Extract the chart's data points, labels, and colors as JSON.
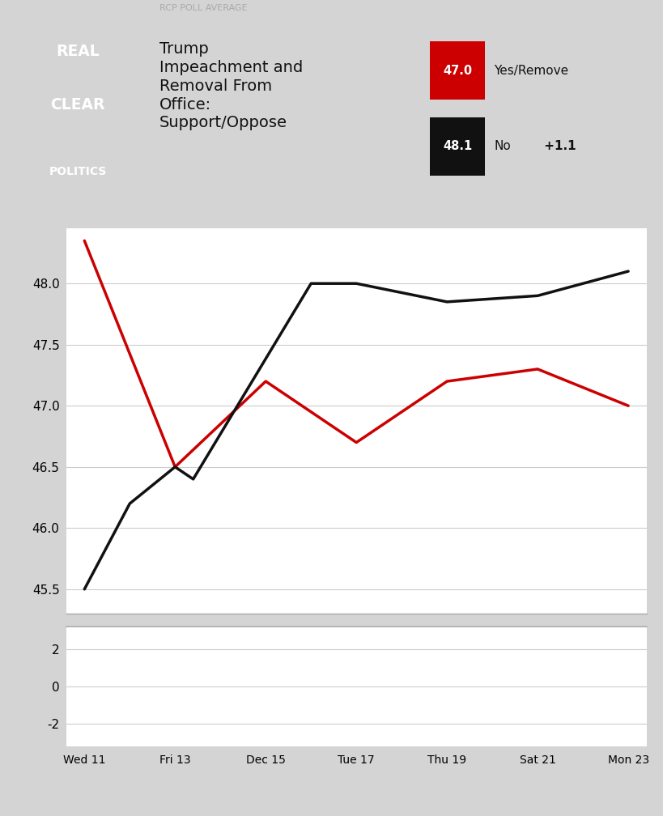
{
  "x_labels": [
    "Wed 11",
    "Fri 13",
    "Dec 15",
    "Tue 17",
    "Thu 19",
    "Sat 21",
    "Mon 23"
  ],
  "x_values": [
    0,
    1,
    2,
    3,
    4,
    5,
    6
  ],
  "red_values": [
    48.35,
    46.5,
    47.2,
    46.7,
    47.2,
    47.3,
    47.0
  ],
  "black_values": [
    45.5,
    46.2,
    46.5,
    46.4,
    48.0,
    48.0,
    47.85,
    47.9,
    48.1
  ],
  "black_x": [
    0,
    0.5,
    1,
    1.2,
    2.5,
    3,
    4,
    5,
    6
  ],
  "red_label_value": "47.0",
  "black_label_value": "48.1",
  "black_diff": "+1.1",
  "red_color": "#cc0000",
  "black_color": "#111111",
  "chart_bg": "#ffffff",
  "rcp_label": "RCP POLL AVERAGE",
  "title_text": "Trump\nImpeachment and\nRemoval From\nOffice:\nSupport/Oppose",
  "legend_yes_label": "Yes/Remove",
  "legend_no_label": "No",
  "upper_ylim": [
    45.3,
    48.45
  ],
  "upper_yticks": [
    45.5,
    46.0,
    46.5,
    47.0,
    47.5,
    48.0
  ],
  "lower_ylim": [
    -3.2,
    3.2
  ],
  "lower_yticks": [
    -2,
    0,
    2
  ],
  "outer_bg": "#d4d4d4",
  "logo_red": "#cc0000",
  "logo_black": "#111111",
  "logo_white": "#ffffff",
  "legend_border": "#cccccc"
}
